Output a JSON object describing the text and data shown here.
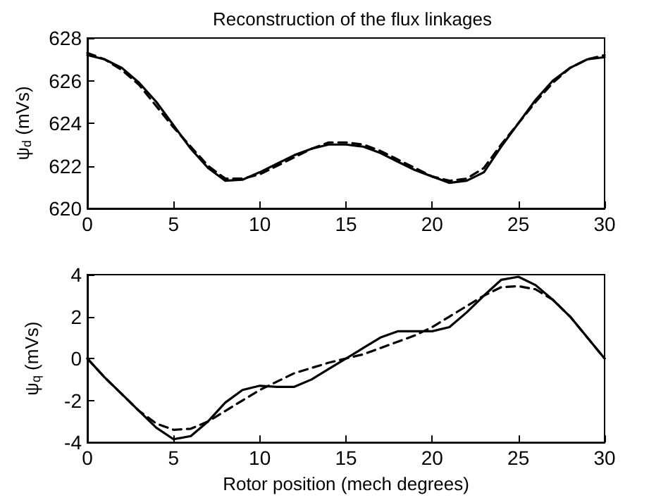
{
  "chart_data": [
    {
      "type": "line",
      "title": "Reconstruction of the flux linkages",
      "ylabel": "ψ$_{d}$ (mVs)",
      "x": [
        0,
        1,
        2,
        3,
        4,
        5,
        6,
        7,
        8,
        9,
        10,
        11,
        12,
        13,
        14,
        15,
        16,
        17,
        18,
        19,
        20,
        21,
        22,
        23,
        24,
        25,
        26,
        27,
        28,
        29,
        30
      ],
      "series": [
        {
          "color": "#000000",
          "line_style": "solid",
          "values": [
            627.2,
            627.0,
            626.6,
            625.9,
            625.0,
            623.9,
            622.8,
            621.9,
            621.3,
            621.35,
            621.7,
            622.1,
            622.5,
            622.8,
            623.0,
            623.0,
            622.9,
            622.6,
            622.2,
            621.8,
            621.5,
            621.2,
            621.3,
            621.7,
            622.9,
            624.0,
            625.1,
            626.0,
            626.6,
            627.0,
            627.1
          ]
        },
        {
          "color": "#000000",
          "line_style": "dashed",
          "values": [
            627.3,
            627.0,
            626.5,
            625.8,
            624.8,
            623.8,
            622.9,
            622.0,
            621.4,
            621.4,
            621.6,
            622.0,
            622.4,
            622.8,
            623.1,
            623.1,
            623.0,
            622.7,
            622.3,
            621.9,
            621.5,
            621.3,
            621.4,
            621.9,
            623.0,
            624.0,
            625.0,
            625.9,
            626.6,
            627.0,
            627.2
          ]
        }
      ],
      "xlim": [
        0,
        30
      ],
      "xticks": [
        0,
        5,
        10,
        15,
        20,
        25,
        30
      ],
      "ylim": [
        620,
        628
      ],
      "yticks": [
        620,
        622,
        624,
        626,
        628
      ],
      "marker": "none"
    },
    {
      "type": "line",
      "xlabel": "Rotor position (mech degrees)",
      "ylabel": "ψ$_{q}$ (mVs)",
      "x": [
        0,
        1,
        2,
        3,
        4,
        5,
        6,
        7,
        8,
        9,
        10,
        11,
        12,
        13,
        14,
        15,
        16,
        17,
        18,
        19,
        20,
        21,
        22,
        23,
        24,
        25,
        26,
        27,
        28,
        29,
        30
      ],
      "series": [
        {
          "color": "#000000",
          "line_style": "solid",
          "values": [
            0,
            -0.9,
            -1.7,
            -2.5,
            -3.3,
            -3.85,
            -3.7,
            -3.0,
            -2.1,
            -1.5,
            -1.3,
            -1.35,
            -1.35,
            -1.0,
            -0.5,
            0,
            0.5,
            1.0,
            1.3,
            1.3,
            1.3,
            1.5,
            2.2,
            3.0,
            3.75,
            3.9,
            3.5,
            2.8,
            2.0,
            1.0,
            0
          ]
        },
        {
          "color": "#000000",
          "line_style": "dashed",
          "values": [
            0,
            -0.9,
            -1.7,
            -2.5,
            -3.1,
            -3.4,
            -3.35,
            -3.0,
            -2.5,
            -2.0,
            -1.5,
            -1.1,
            -0.7,
            -0.45,
            -0.2,
            0,
            0.2,
            0.5,
            0.8,
            1.1,
            1.5,
            2.0,
            2.5,
            3.0,
            3.4,
            3.45,
            3.3,
            2.8,
            2.0,
            1.0,
            0
          ]
        }
      ],
      "xlim": [
        0,
        30
      ],
      "xticks": [
        0,
        5,
        10,
        15,
        20,
        25,
        30
      ],
      "ylim": [
        -4,
        4
      ],
      "yticks": [
        -4,
        -2,
        0,
        2,
        4
      ],
      "marker": "none"
    }
  ]
}
